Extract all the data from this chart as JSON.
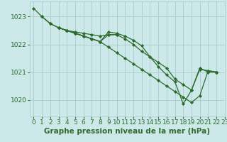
{
  "xlabel": "Graphe pression niveau de la mer (hPa)",
  "background_color": "#cce8e8",
  "grid_color": "#aacccc",
  "line_color": "#2d6b2d",
  "xlim": [
    -0.5,
    23
  ],
  "ylim": [
    1019.4,
    1023.55
  ],
  "yticks": [
    1020,
    1021,
    1022,
    1023
  ],
  "xticks": [
    0,
    1,
    2,
    3,
    4,
    5,
    6,
    7,
    8,
    9,
    10,
    11,
    12,
    13,
    14,
    15,
    16,
    17,
    18,
    19,
    20,
    21,
    22,
    23
  ],
  "lines": [
    [
      1023.3,
      1023.0,
      1022.75,
      1022.6,
      1022.5,
      1022.4,
      1022.3,
      1022.2,
      1022.1,
      1022.45,
      1022.4,
      1022.3,
      1022.15,
      1021.95,
      1021.55,
      1021.2,
      1020.9,
      1020.65,
      1019.85,
      1020.35,
      1021.1,
      1021.05,
      1021.0,
      null
    ],
    [
      null,
      1023.0,
      1022.75,
      1022.6,
      1022.5,
      1022.4,
      1022.3,
      1022.2,
      1022.1,
      1021.9,
      1021.7,
      1021.5,
      1021.3,
      1021.1,
      1020.9,
      1020.7,
      1020.5,
      1020.3,
      1020.1,
      1019.9,
      1020.15,
      1021.05,
      1021.0,
      null
    ],
    [
      null,
      null,
      null,
      1022.6,
      1022.5,
      1022.45,
      1022.4,
      1022.35,
      1022.3,
      1022.35,
      1022.35,
      null,
      null,
      null,
      null,
      null,
      null,
      null,
      null,
      null,
      null,
      null,
      null,
      null
    ],
    [
      null,
      null,
      null,
      1022.6,
      1022.5,
      1022.4,
      1022.3,
      1022.2,
      1022.1,
      1022.35,
      1022.35,
      1022.2,
      1022.0,
      1021.75,
      1021.55,
      1021.35,
      1021.15,
      1020.75,
      1020.55,
      1020.35,
      1021.15,
      1021.0,
      1021.0,
      null
    ]
  ],
  "tick_fontsize": 6.5,
  "label_fontsize": 7.5,
  "marker": "D",
  "markersize": 2.2,
  "linewidth": 0.9
}
